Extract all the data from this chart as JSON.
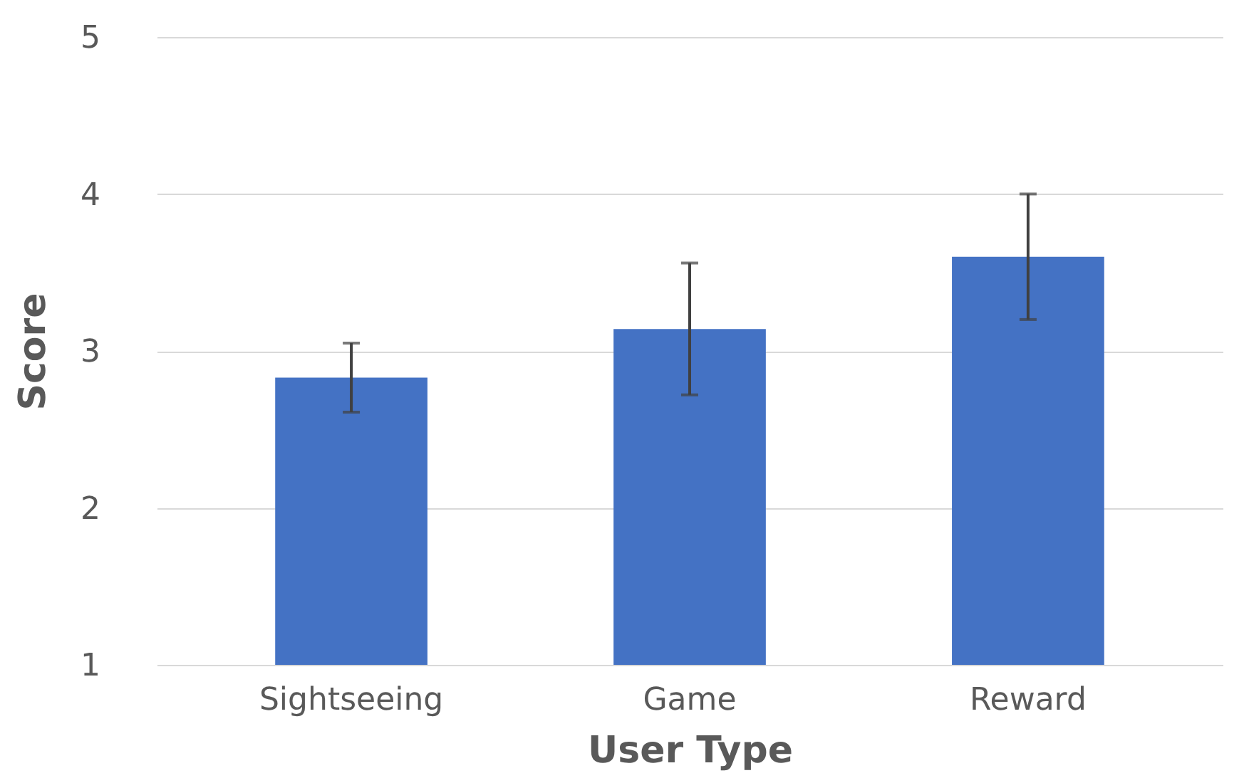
{
  "chart_data": {
    "type": "bar",
    "xlabel": "User Type",
    "ylabel": "Score",
    "categories": [
      "Sightseeing",
      "Game",
      "Reward"
    ],
    "values": [
      2.83,
      3.14,
      3.6
    ],
    "errors": [
      0.22,
      0.42,
      0.4
    ],
    "color": "#4472c4",
    "ylim": [
      1,
      5
    ],
    "yticks": [
      1,
      2,
      3,
      4,
      5
    ],
    "grid": "y"
  }
}
